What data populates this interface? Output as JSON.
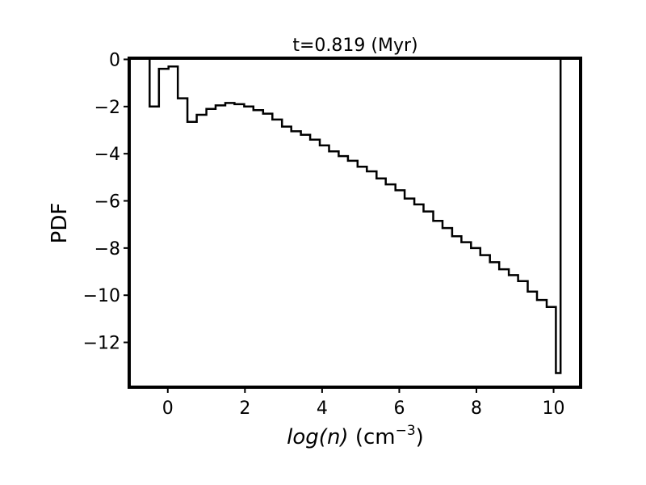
{
  "chart_data": {
    "type": "line",
    "drawstyle": "steps",
    "title": "t=0.819 (Myr)",
    "xlabel_math": "log(n)",
    "xlabel_unit_base": " (cm",
    "xlabel_unit_exp": "−3",
    "xlabel_unit_close": ")",
    "ylabel": "PDF",
    "xlim": [
      -1.0,
      10.7
    ],
    "ylim": [
      -13.9,
      0.05
    ],
    "xticks": [
      0,
      2,
      4,
      6,
      8,
      10
    ],
    "xtick_labels": [
      "0",
      "2",
      "4",
      "6",
      "8",
      "10"
    ],
    "yticks": [
      0,
      -2,
      -4,
      -6,
      -8,
      -10,
      -12
    ],
    "ytick_labels": [
      "0",
      "−2",
      "−4",
      "−6",
      "−8",
      "−10",
      "−12"
    ],
    "grid": false,
    "legend": false,
    "edges": [
      -0.47,
      -0.23,
      0.02,
      0.26,
      0.51,
      0.75,
      1.0,
      1.24,
      1.49,
      1.73,
      1.98,
      2.22,
      2.47,
      2.71,
      2.96,
      3.2,
      3.45,
      3.69,
      3.94,
      4.18,
      4.43,
      4.67,
      4.92,
      5.16,
      5.41,
      5.65,
      5.9,
      6.14,
      6.39,
      6.63,
      6.88,
      7.12,
      7.37,
      7.61,
      7.86,
      8.1,
      8.35,
      8.59,
      8.84,
      9.08,
      9.33,
      9.57,
      9.82,
      10.06,
      10.18
    ],
    "values": [
      -2.0,
      -0.4,
      -0.3,
      -1.65,
      -2.65,
      -2.35,
      -2.1,
      -1.95,
      -1.85,
      -1.9,
      -2.0,
      -2.15,
      -2.3,
      -2.55,
      -2.85,
      -3.05,
      -3.2,
      -3.4,
      -3.65,
      -3.9,
      -4.1,
      -4.3,
      -4.55,
      -4.75,
      -5.05,
      -5.3,
      -5.55,
      -5.9,
      -6.15,
      -6.45,
      -6.85,
      -7.15,
      -7.5,
      -7.75,
      -8.0,
      -8.3,
      -8.6,
      -8.9,
      -9.15,
      -9.4,
      -9.85,
      -10.2,
      -10.5,
      -13.3
    ]
  }
}
